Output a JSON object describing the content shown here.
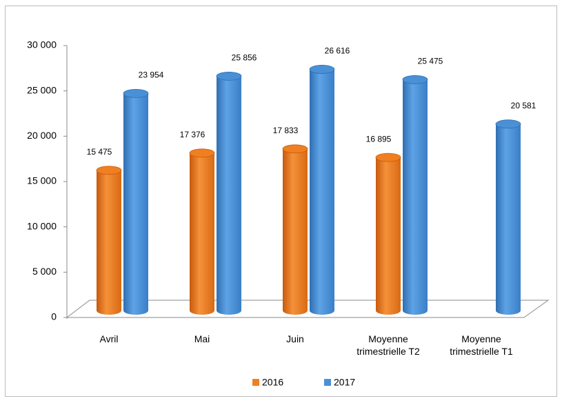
{
  "chart_data": {
    "type": "bar3d",
    "categories": [
      "Avril",
      "Mai",
      "Juin",
      "Moyenne trimestrielle T2",
      "Moyenne trimestrielle T1"
    ],
    "series": [
      {
        "name": "2016",
        "color": "#f07f21",
        "values": [
          15475,
          17376,
          17833,
          16895,
          null
        ],
        "value_labels": [
          "15 475",
          "17 376",
          "17 833",
          "16 895",
          null
        ]
      },
      {
        "name": "2017",
        "color": "#4a90d6",
        "values": [
          23954,
          25856,
          26616,
          25475,
          20581
        ],
        "value_labels": [
          "23 954",
          "25 856",
          "26 616",
          "25 475",
          "20 581"
        ]
      }
    ],
    "ylim": [
      0,
      30000
    ],
    "yticks": [
      0,
      {
        "value": 5000,
        "label": "5 000"
      },
      {
        "value": 10000,
        "label": "10 000"
      },
      {
        "value": 15000,
        "label": "15 000"
      },
      {
        "value": 20000,
        "label": "20 000"
      },
      {
        "value": 25000,
        "label": "25 000"
      },
      {
        "value": 30000,
        "label": "30 000"
      }
    ],
    "legend": "bottom"
  }
}
